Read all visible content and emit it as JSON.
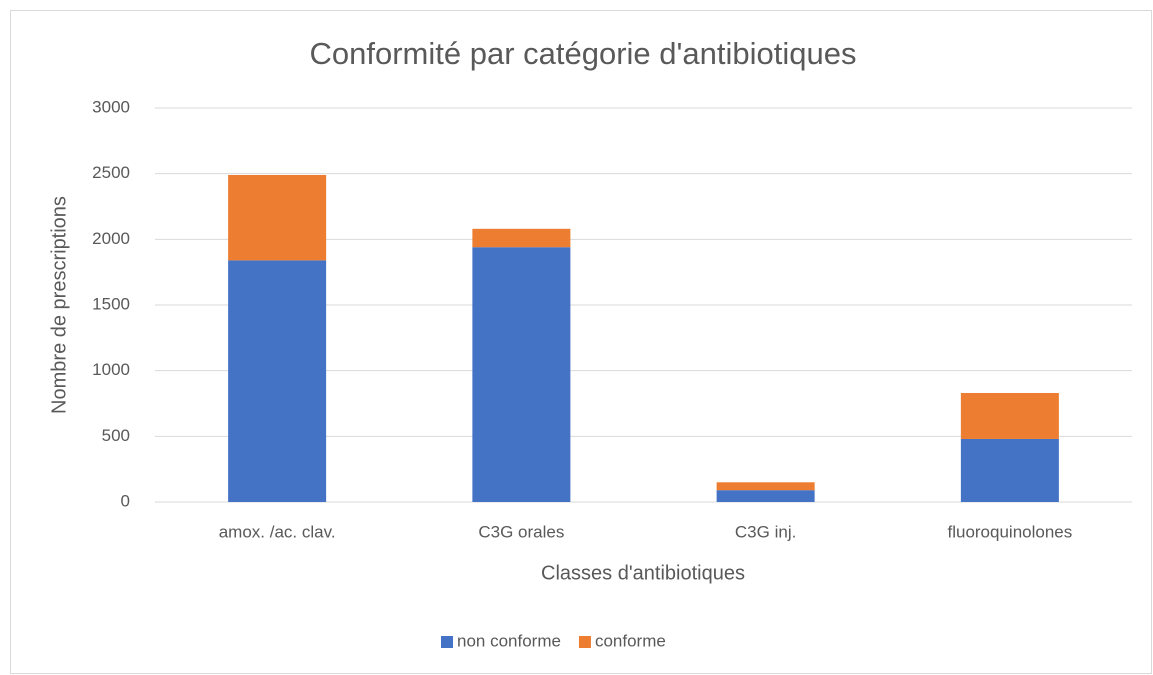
{
  "chart_data": {
    "type": "stacked_bar",
    "title": "Conformité par catégorie d'antibiotiques",
    "x_label": "Classes d'antibiotiques",
    "y_label": "Nombre de prescriptions",
    "categories": [
      "amox. /ac. clav.",
      "C3G orales",
      "C3G inj.",
      "fluoroquinolones"
    ],
    "series": [
      {
        "name": "non conforme",
        "color": "#4472c4",
        "values": [
          1840,
          1940,
          90,
          480
        ]
      },
      {
        "name": "conforme",
        "color": "#ed7d31",
        "values": [
          650,
          140,
          60,
          350
        ]
      }
    ],
    "ylim": [
      0,
      3000
    ],
    "yticks": [
      0,
      500,
      1000,
      1500,
      2000,
      2500,
      3000
    ],
    "grid": true,
    "legend": "bottom"
  }
}
